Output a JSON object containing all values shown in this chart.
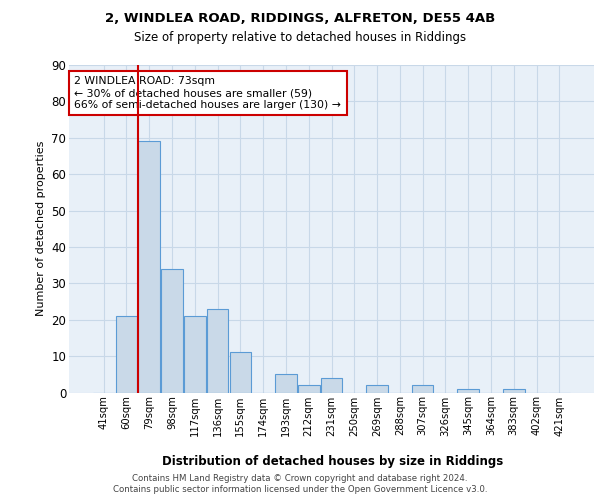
{
  "title1": "2, WINDLEA ROAD, RIDDINGS, ALFRETON, DE55 4AB",
  "title2": "Size of property relative to detached houses in Riddings",
  "xlabel": "Distribution of detached houses by size in Riddings",
  "ylabel": "Number of detached properties",
  "categories": [
    "41sqm",
    "60sqm",
    "79sqm",
    "98sqm",
    "117sqm",
    "136sqm",
    "155sqm",
    "174sqm",
    "193sqm",
    "212sqm",
    "231sqm",
    "250sqm",
    "269sqm",
    "288sqm",
    "307sqm",
    "326sqm",
    "345sqm",
    "364sqm",
    "383sqm",
    "402sqm",
    "421sqm"
  ],
  "values": [
    0,
    21,
    69,
    34,
    21,
    23,
    11,
    0,
    5,
    2,
    4,
    0,
    2,
    0,
    2,
    0,
    1,
    0,
    1,
    0,
    0
  ],
  "bar_color": "#c9d9e8",
  "bar_edge_color": "#5b9bd5",
  "annotation_text": "2 WINDLEA ROAD: 73sqm\n← 30% of detached houses are smaller (59)\n66% of semi-detached houses are larger (130) →",
  "annotation_box_color": "#ffffff",
  "annotation_box_edge": "#cc0000",
  "red_line_color": "#cc0000",
  "footer": "Contains HM Land Registry data © Crown copyright and database right 2024.\nContains public sector information licensed under the Open Government Licence v3.0.",
  "ylim": [
    0,
    90
  ],
  "yticks": [
    0,
    10,
    20,
    30,
    40,
    50,
    60,
    70,
    80,
    90
  ],
  "grid_color": "#c8d8e8",
  "bg_color": "#e8f0f8"
}
